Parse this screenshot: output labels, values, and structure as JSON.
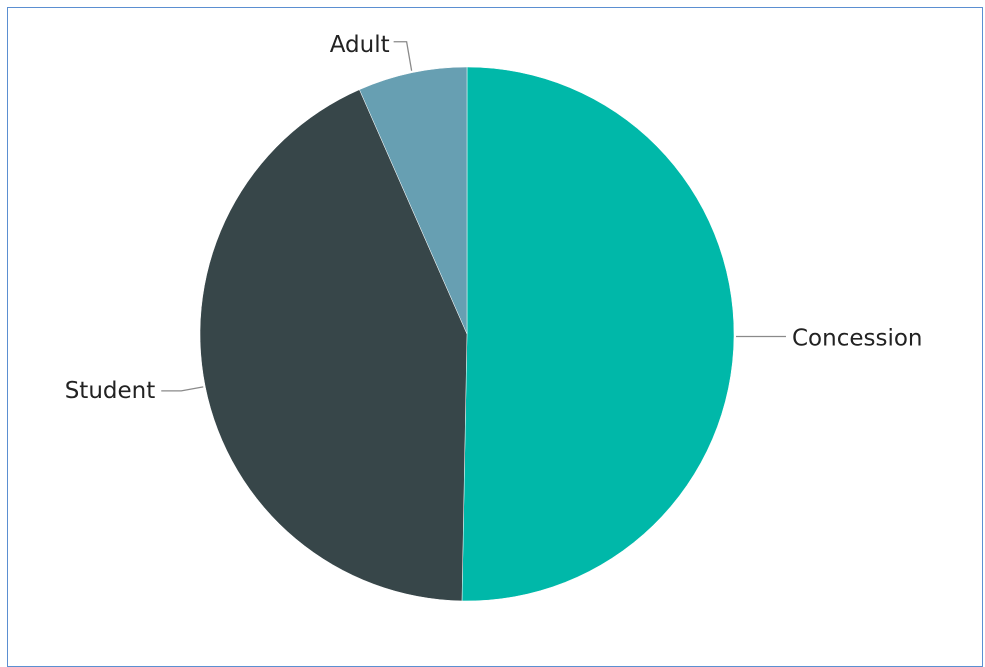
{
  "chart_data": {
    "type": "pie",
    "title": "",
    "categories": [
      "Concession",
      "Student",
      "Adult"
    ],
    "values": [
      50.3,
      43.1,
      6.6
    ],
    "colors": [
      "#00b8a9",
      "#374649",
      "#679fb2"
    ],
    "legend": "none",
    "data_labels": "category names outside with leader lines"
  }
}
